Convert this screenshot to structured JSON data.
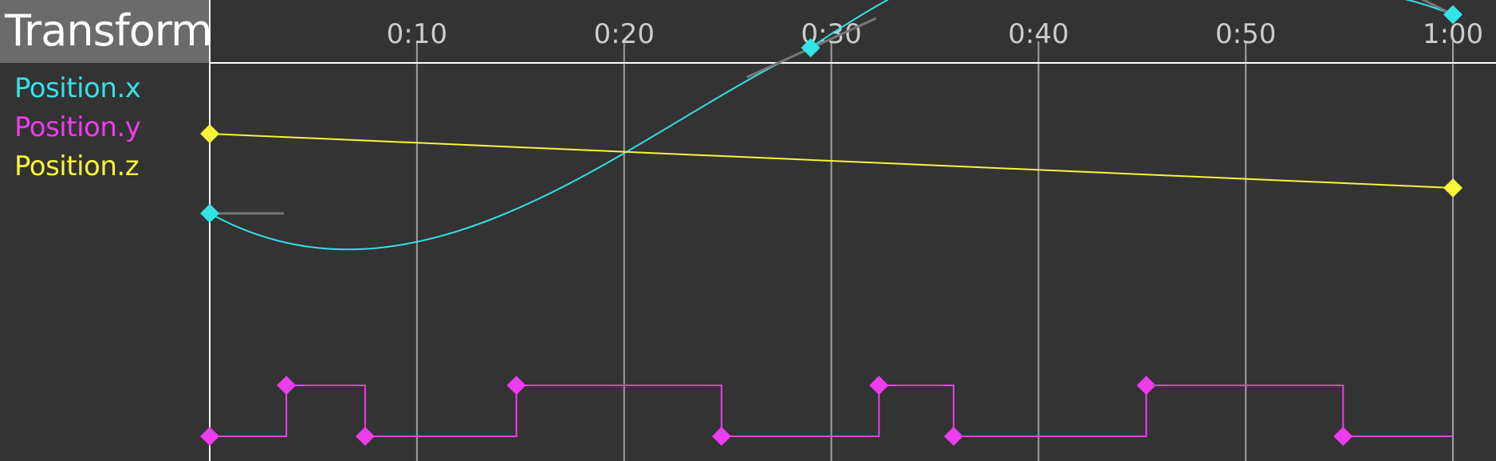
{
  "panel": {
    "title": "Transform"
  },
  "timeline": {
    "ticks": [
      "0:10",
      "0:20",
      "0:30",
      "0:40",
      "0:50",
      "1:00"
    ],
    "tick_seconds": [
      10,
      20,
      30,
      40,
      50,
      60
    ],
    "duration_seconds": 60
  },
  "colors": {
    "background": "#333333",
    "header_box": "#6b6b6b",
    "gridline": "#a0a0a0",
    "position_x": "#33e3e6",
    "position_y": "#ee3cee",
    "position_z": "#f7f73a"
  },
  "tracks": [
    {
      "id": "position_x",
      "label": "Position.x",
      "color": "#33e3e6",
      "interpolation": "bezier",
      "keyframes": [
        {
          "t": 0,
          "v": 0.37
        },
        {
          "t": 29,
          "v": -0.38
        },
        {
          "t": 60,
          "v": -0.53
        }
      ],
      "value_range": [
        -1,
        1
      ],
      "lane": [
        0.0,
        1.0
      ]
    },
    {
      "id": "position_y",
      "label": "Position.y",
      "color": "#ee3cee",
      "interpolation": "step",
      "keyframes": [
        {
          "t": 0,
          "v": 0
        },
        {
          "t": 3.7,
          "v": 1
        },
        {
          "t": 7.5,
          "v": 0
        },
        {
          "t": 14.8,
          "v": 1
        },
        {
          "t": 24.7,
          "v": 0
        },
        {
          "t": 32.3,
          "v": 1
        },
        {
          "t": 35.9,
          "v": 0
        },
        {
          "t": 45.2,
          "v": 1
        },
        {
          "t": 54.7,
          "v": 0
        },
        {
          "t": 60,
          "v": 0
        }
      ],
      "value_range": [
        0,
        1
      ],
      "lane": [
        0.0,
        1.0
      ]
    },
    {
      "id": "position_z",
      "label": "Position.z",
      "color": "#f7f73a",
      "interpolation": "linear",
      "keyframes": [
        {
          "t": 0,
          "v": 0.89
        },
        {
          "t": 60,
          "v": 0.64
        }
      ],
      "value_range": [
        0,
        1
      ],
      "lane": [
        0.0,
        1.0
      ]
    }
  ]
}
